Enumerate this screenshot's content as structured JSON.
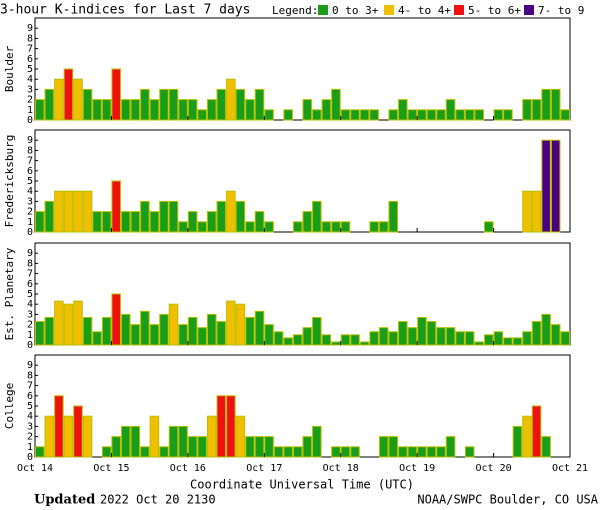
{
  "header": {
    "title": "3-hour K-indices for Last 7 days",
    "legend_label": "Legend:",
    "legend": [
      {
        "name": "0 to 3+",
        "color": "#1a9e1a"
      },
      {
        "name": "4- to 4+",
        "color": "#f0c000"
      },
      {
        "name": "5- to 6+",
        "color": "#f01010"
      },
      {
        "name": "7- to 9",
        "color": "#4b0082"
      }
    ]
  },
  "chart_data": [
    {
      "type": "bar",
      "ylabel": "Boulder",
      "ylim": [
        0,
        10
      ],
      "yticks": [
        0,
        1,
        2,
        3,
        4,
        5,
        6,
        7,
        8,
        9
      ],
      "values": [
        2,
        3,
        4,
        5,
        4,
        3,
        2,
        2,
        5,
        2,
        2,
        3,
        2,
        3,
        3,
        2,
        2,
        1,
        2,
        3,
        4,
        3,
        2,
        3,
        1,
        0,
        1,
        0,
        2,
        1,
        2,
        3,
        1,
        1,
        1,
        1,
        0,
        1,
        2,
        1,
        1,
        1,
        1,
        2,
        1,
        1,
        1,
        0,
        1,
        1,
        0,
        2,
        2,
        3,
        3,
        1
      ],
      "colors": [
        "#1a9e1a",
        "#1a9e1a",
        "#f0c000",
        "#f01010",
        "#f0c000",
        "#1a9e1a",
        "#1a9e1a",
        "#1a9e1a",
        "#f01010",
        "#1a9e1a",
        "#1a9e1a",
        "#1a9e1a",
        "#1a9e1a",
        "#1a9e1a",
        "#1a9e1a",
        "#1a9e1a",
        "#1a9e1a",
        "#1a9e1a",
        "#1a9e1a",
        "#1a9e1a",
        "#f0c000",
        "#1a9e1a",
        "#1a9e1a",
        "#1a9e1a",
        "#1a9e1a",
        "#1a9e1a",
        "#1a9e1a",
        "#1a9e1a",
        "#1a9e1a",
        "#1a9e1a",
        "#1a9e1a",
        "#1a9e1a",
        "#1a9e1a",
        "#1a9e1a",
        "#1a9e1a",
        "#1a9e1a",
        "#1a9e1a",
        "#1a9e1a",
        "#1a9e1a",
        "#1a9e1a",
        "#1a9e1a",
        "#1a9e1a",
        "#1a9e1a",
        "#1a9e1a",
        "#1a9e1a",
        "#1a9e1a",
        "#1a9e1a",
        "#1a9e1a",
        "#1a9e1a",
        "#1a9e1a",
        "#1a9e1a",
        "#1a9e1a",
        "#1a9e1a",
        "#1a9e1a",
        "#1a9e1a",
        "#1a9e1a"
      ]
    },
    {
      "type": "bar",
      "ylabel": "Fredericksburg",
      "ylim": [
        0,
        10
      ],
      "yticks": [
        0,
        1,
        2,
        3,
        4,
        5,
        6,
        7,
        8,
        9
      ],
      "values": [
        2,
        3,
        4,
        4,
        4,
        4,
        2,
        2,
        5,
        2,
        2,
        3,
        2,
        3,
        3,
        1,
        2,
        1,
        2,
        3,
        4,
        3,
        1,
        2,
        1,
        0,
        0,
        1,
        2,
        3,
        1,
        1,
        1,
        0,
        0,
        1,
        1,
        3,
        0,
        0,
        0,
        0,
        0,
        0,
        0,
        0,
        0,
        1,
        0,
        0,
        0,
        4,
        4,
        9,
        9,
        0
      ],
      "colors": [
        "#1a9e1a",
        "#1a9e1a",
        "#f0c000",
        "#f0c000",
        "#f0c000",
        "#f0c000",
        "#1a9e1a",
        "#1a9e1a",
        "#f01010",
        "#1a9e1a",
        "#1a9e1a",
        "#1a9e1a",
        "#1a9e1a",
        "#1a9e1a",
        "#1a9e1a",
        "#1a9e1a",
        "#1a9e1a",
        "#1a9e1a",
        "#1a9e1a",
        "#1a9e1a",
        "#f0c000",
        "#1a9e1a",
        "#1a9e1a",
        "#1a9e1a",
        "#1a9e1a",
        "#1a9e1a",
        "#1a9e1a",
        "#1a9e1a",
        "#1a9e1a",
        "#1a9e1a",
        "#1a9e1a",
        "#1a9e1a",
        "#1a9e1a",
        "#1a9e1a",
        "#1a9e1a",
        "#1a9e1a",
        "#1a9e1a",
        "#1a9e1a",
        "#1a9e1a",
        "#1a9e1a",
        "#1a9e1a",
        "#1a9e1a",
        "#1a9e1a",
        "#1a9e1a",
        "#1a9e1a",
        "#1a9e1a",
        "#1a9e1a",
        "#1a9e1a",
        "#1a9e1a",
        "#1a9e1a",
        "#1a9e1a",
        "#f0c000",
        "#f0c000",
        "#4b0082",
        "#4b0082",
        "#1a9e1a"
      ]
    },
    {
      "type": "bar",
      "ylabel": "Est. Planetary",
      "ylim": [
        0,
        10
      ],
      "yticks": [
        0,
        1,
        2,
        3,
        4,
        5,
        6,
        7,
        8,
        9
      ],
      "values": [
        2.3,
        2.7,
        4.3,
        4,
        4.3,
        2.7,
        1.3,
        2.7,
        5,
        3,
        2,
        3.3,
        2,
        3,
        4,
        2,
        2.7,
        1.7,
        3,
        2.3,
        4.3,
        4,
        2.7,
        3.3,
        2,
        1.3,
        0.7,
        1,
        1.7,
        2.7,
        1,
        0.3,
        1,
        1,
        0.3,
        1.3,
        1.7,
        1.3,
        2.3,
        1.7,
        2.7,
        2.3,
        1.7,
        1.7,
        1.3,
        1.3,
        0.3,
        1,
        1.3,
        0.7,
        0.7,
        1.3,
        2.3,
        3,
        2,
        1.3
      ],
      "colors": [
        "#1a9e1a",
        "#1a9e1a",
        "#f0c000",
        "#f0c000",
        "#f0c000",
        "#1a9e1a",
        "#1a9e1a",
        "#1a9e1a",
        "#f01010",
        "#1a9e1a",
        "#1a9e1a",
        "#1a9e1a",
        "#1a9e1a",
        "#1a9e1a",
        "#f0c000",
        "#1a9e1a",
        "#1a9e1a",
        "#1a9e1a",
        "#1a9e1a",
        "#1a9e1a",
        "#f0c000",
        "#f0c000",
        "#1a9e1a",
        "#1a9e1a",
        "#1a9e1a",
        "#1a9e1a",
        "#1a9e1a",
        "#1a9e1a",
        "#1a9e1a",
        "#1a9e1a",
        "#1a9e1a",
        "#1a9e1a",
        "#1a9e1a",
        "#1a9e1a",
        "#1a9e1a",
        "#1a9e1a",
        "#1a9e1a",
        "#1a9e1a",
        "#1a9e1a",
        "#1a9e1a",
        "#1a9e1a",
        "#1a9e1a",
        "#1a9e1a",
        "#1a9e1a",
        "#1a9e1a",
        "#1a9e1a",
        "#1a9e1a",
        "#1a9e1a",
        "#1a9e1a",
        "#1a9e1a",
        "#1a9e1a",
        "#1a9e1a",
        "#1a9e1a",
        "#1a9e1a",
        "#1a9e1a",
        "#1a9e1a"
      ]
    },
    {
      "type": "bar",
      "ylabel": "College",
      "ylim": [
        0,
        10
      ],
      "yticks": [
        0,
        1,
        2,
        3,
        4,
        5,
        6,
        7,
        8,
        9
      ],
      "values": [
        1,
        4,
        6,
        4,
        5,
        4,
        0,
        1,
        2,
        3,
        3,
        1,
        4,
        1,
        3,
        3,
        2,
        2,
        4,
        6,
        6,
        4,
        2,
        2,
        2,
        1,
        1,
        1,
        2,
        3,
        0,
        1,
        1,
        1,
        0,
        0,
        2,
        2,
        1,
        1,
        1,
        1,
        1,
        2,
        0,
        1,
        0,
        0,
        0,
        0,
        3,
        4,
        5,
        2,
        0,
        0
      ],
      "colors": [
        "#1a9e1a",
        "#f0c000",
        "#f01010",
        "#f0c000",
        "#f01010",
        "#f0c000",
        "#1a9e1a",
        "#1a9e1a",
        "#1a9e1a",
        "#1a9e1a",
        "#1a9e1a",
        "#1a9e1a",
        "#f0c000",
        "#1a9e1a",
        "#1a9e1a",
        "#1a9e1a",
        "#1a9e1a",
        "#1a9e1a",
        "#f0c000",
        "#f01010",
        "#f01010",
        "#f0c000",
        "#1a9e1a",
        "#1a9e1a",
        "#1a9e1a",
        "#1a9e1a",
        "#1a9e1a",
        "#1a9e1a",
        "#1a9e1a",
        "#1a9e1a",
        "#1a9e1a",
        "#1a9e1a",
        "#1a9e1a",
        "#1a9e1a",
        "#1a9e1a",
        "#1a9e1a",
        "#1a9e1a",
        "#1a9e1a",
        "#1a9e1a",
        "#1a9e1a",
        "#1a9e1a",
        "#1a9e1a",
        "#1a9e1a",
        "#1a9e1a",
        "#1a9e1a",
        "#1a9e1a",
        "#1a9e1a",
        "#1a9e1a",
        "#1a9e1a",
        "#1a9e1a",
        "#1a9e1a",
        "#f0c000",
        "#f01010",
        "#1a9e1a",
        "#1a9e1a",
        "#1a9e1a"
      ]
    }
  ],
  "x_axis": {
    "labels": [
      "Oct 14",
      "Oct 15",
      "Oct 16",
      "Oct 17",
      "Oct 18",
      "Oct 19",
      "Oct 20",
      "Oct 21"
    ],
    "title": "Coordinate Universal Time (UTC)"
  },
  "footer": {
    "updated_label": "Updated",
    "updated_time": "2022 Oct 20 2130",
    "credit": "NOAA/SWPC Boulder, CO USA"
  }
}
